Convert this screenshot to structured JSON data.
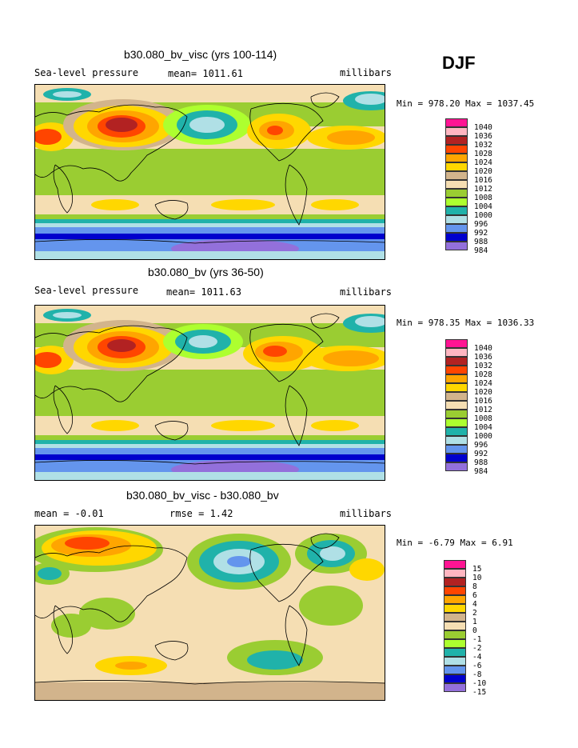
{
  "season": "DJF",
  "panels": [
    {
      "title": "b30.080_bv_visc (yrs 100-114)",
      "left_label": "Sea-level pressure",
      "mid_label": "mean= 1011.61",
      "right_label": "millibars",
      "minmax": "Min = 978.20 Max = 1037.45"
    },
    {
      "title": "b30.080_bv (yrs 36-50)",
      "left_label": "Sea-level pressure",
      "mid_label": "mean= 1011.63",
      "right_label": "millibars",
      "minmax": "Min = 978.35 Max = 1036.33"
    },
    {
      "title": "b30.080_bv_visc - b30.080_bv",
      "left_label": "mean =   -0.01",
      "mid_label": "rmse =    1.42",
      "right_label": "millibars",
      "minmax": "Min =  -6.79 Max =    6.91"
    }
  ],
  "legends": {
    "pressure": {
      "labels": [
        "1040",
        "1036",
        "1032",
        "1028",
        "1024",
        "1020",
        "1016",
        "1012",
        "1008",
        "1004",
        "1000",
        "996",
        "992",
        "988",
        "984"
      ],
      "colors": [
        "#ff1493",
        "#ffb6c1",
        "#b22222",
        "#ff4500",
        "#ffa500",
        "#ffd700",
        "#d2b48c",
        "#f5deb3",
        "#9acd32",
        "#adff2f",
        "#20b2aa",
        "#b0e0e6",
        "#6495ed",
        "#0000cd",
        "#9370db"
      ]
    },
    "difference": {
      "labels": [
        "15",
        "10",
        "8",
        "6",
        "4",
        "2",
        "1",
        "0",
        "-1",
        "-2",
        "-4",
        "-6",
        "-8",
        "-10",
        "-15"
      ],
      "colors": [
        "#ff1493",
        "#ffb6c1",
        "#b22222",
        "#ff4500",
        "#ffa500",
        "#ffd700",
        "#d2b48c",
        "#f5deb3",
        "#9acd32",
        "#adff2f",
        "#20b2aa",
        "#b0e0e6",
        "#6495ed",
        "#0000cd",
        "#9370db"
      ]
    }
  }
}
